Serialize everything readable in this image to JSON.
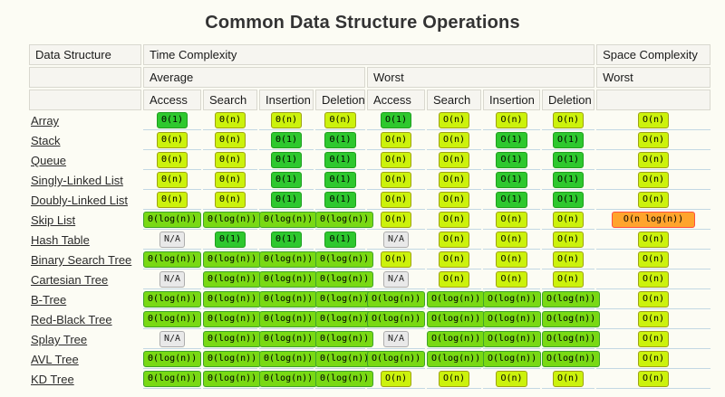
{
  "title": "Common Data Structure Operations",
  "colors": {
    "green-bg": "#2ec82e",
    "green-border": "#1f9e1f",
    "lightgreen-bg": "#79d914",
    "lightgreen-border": "#3fa32a",
    "yellow-bg": "#ccf20c",
    "yellow-border": "#9ea314",
    "orange-bg": "#ffa42d",
    "orange-border": "#ff4f40",
    "na-bg": "#e9e9e9",
    "na-border": "#adadad"
  },
  "table": {
    "header": {
      "data_structure": "Data Structure",
      "time_complexity": "Time Complexity",
      "space_complexity": "Space Complexity",
      "average": "Average",
      "worst": "Worst",
      "space_worst": "Worst",
      "ops": [
        "Access",
        "Search",
        "Insertion",
        "Deletion",
        "Access",
        "Search",
        "Insertion",
        "Deletion"
      ]
    },
    "rows": [
      {
        "name": "Array",
        "cells": [
          [
            "Θ(1)",
            "green"
          ],
          [
            "Θ(n)",
            "yellow"
          ],
          [
            "Θ(n)",
            "yellow"
          ],
          [
            "Θ(n)",
            "yellow"
          ],
          [
            "O(1)",
            "green"
          ],
          [
            "O(n)",
            "yellow"
          ],
          [
            "O(n)",
            "yellow"
          ],
          [
            "O(n)",
            "yellow"
          ],
          [
            "O(n)",
            "yellow"
          ]
        ]
      },
      {
        "name": "Stack",
        "cells": [
          [
            "Θ(n)",
            "yellow"
          ],
          [
            "Θ(n)",
            "yellow"
          ],
          [
            "Θ(1)",
            "green"
          ],
          [
            "Θ(1)",
            "green"
          ],
          [
            "O(n)",
            "yellow"
          ],
          [
            "O(n)",
            "yellow"
          ],
          [
            "O(1)",
            "green"
          ],
          [
            "O(1)",
            "green"
          ],
          [
            "O(n)",
            "yellow"
          ]
        ]
      },
      {
        "name": "Queue",
        "cells": [
          [
            "Θ(n)",
            "yellow"
          ],
          [
            "Θ(n)",
            "yellow"
          ],
          [
            "Θ(1)",
            "green"
          ],
          [
            "Θ(1)",
            "green"
          ],
          [
            "O(n)",
            "yellow"
          ],
          [
            "O(n)",
            "yellow"
          ],
          [
            "O(1)",
            "green"
          ],
          [
            "O(1)",
            "green"
          ],
          [
            "O(n)",
            "yellow"
          ]
        ]
      },
      {
        "name": "Singly-Linked List",
        "cells": [
          [
            "Θ(n)",
            "yellow"
          ],
          [
            "Θ(n)",
            "yellow"
          ],
          [
            "Θ(1)",
            "green"
          ],
          [
            "Θ(1)",
            "green"
          ],
          [
            "O(n)",
            "yellow"
          ],
          [
            "O(n)",
            "yellow"
          ],
          [
            "O(1)",
            "green"
          ],
          [
            "O(1)",
            "green"
          ],
          [
            "O(n)",
            "yellow"
          ]
        ]
      },
      {
        "name": "Doubly-Linked List",
        "cells": [
          [
            "Θ(n)",
            "yellow"
          ],
          [
            "Θ(n)",
            "yellow"
          ],
          [
            "Θ(1)",
            "green"
          ],
          [
            "Θ(1)",
            "green"
          ],
          [
            "O(n)",
            "yellow"
          ],
          [
            "O(n)",
            "yellow"
          ],
          [
            "O(1)",
            "green"
          ],
          [
            "O(1)",
            "green"
          ],
          [
            "O(n)",
            "yellow"
          ]
        ]
      },
      {
        "name": "Skip List",
        "cells": [
          [
            "Θ(log(n))",
            "lightgreen"
          ],
          [
            "Θ(log(n))",
            "lightgreen"
          ],
          [
            "Θ(log(n))",
            "lightgreen"
          ],
          [
            "Θ(log(n))",
            "lightgreen"
          ],
          [
            "O(n)",
            "yellow"
          ],
          [
            "O(n)",
            "yellow"
          ],
          [
            "O(n)",
            "yellow"
          ],
          [
            "O(n)",
            "yellow"
          ],
          [
            "O(n log(n))",
            "orange"
          ]
        ]
      },
      {
        "name": "Hash Table",
        "cells": [
          [
            "N/A",
            "na"
          ],
          [
            "Θ(1)",
            "green"
          ],
          [
            "Θ(1)",
            "green"
          ],
          [
            "Θ(1)",
            "green"
          ],
          [
            "N/A",
            "na"
          ],
          [
            "O(n)",
            "yellow"
          ],
          [
            "O(n)",
            "yellow"
          ],
          [
            "O(n)",
            "yellow"
          ],
          [
            "O(n)",
            "yellow"
          ]
        ]
      },
      {
        "name": "Binary Search Tree",
        "cells": [
          [
            "Θ(log(n))",
            "lightgreen"
          ],
          [
            "Θ(log(n))",
            "lightgreen"
          ],
          [
            "Θ(log(n))",
            "lightgreen"
          ],
          [
            "Θ(log(n))",
            "lightgreen"
          ],
          [
            "O(n)",
            "yellow"
          ],
          [
            "O(n)",
            "yellow"
          ],
          [
            "O(n)",
            "yellow"
          ],
          [
            "O(n)",
            "yellow"
          ],
          [
            "O(n)",
            "yellow"
          ]
        ]
      },
      {
        "name": "Cartesian Tree",
        "cells": [
          [
            "N/A",
            "na"
          ],
          [
            "Θ(log(n))",
            "lightgreen"
          ],
          [
            "Θ(log(n))",
            "lightgreen"
          ],
          [
            "Θ(log(n))",
            "lightgreen"
          ],
          [
            "N/A",
            "na"
          ],
          [
            "O(n)",
            "yellow"
          ],
          [
            "O(n)",
            "yellow"
          ],
          [
            "O(n)",
            "yellow"
          ],
          [
            "O(n)",
            "yellow"
          ]
        ]
      },
      {
        "name": "B-Tree",
        "cells": [
          [
            "Θ(log(n))",
            "lightgreen"
          ],
          [
            "Θ(log(n))",
            "lightgreen"
          ],
          [
            "Θ(log(n))",
            "lightgreen"
          ],
          [
            "Θ(log(n))",
            "lightgreen"
          ],
          [
            "O(log(n))",
            "lightgreen"
          ],
          [
            "O(log(n))",
            "lightgreen"
          ],
          [
            "O(log(n))",
            "lightgreen"
          ],
          [
            "O(log(n))",
            "lightgreen"
          ],
          [
            "O(n)",
            "yellow"
          ]
        ]
      },
      {
        "name": "Red-Black Tree",
        "cells": [
          [
            "Θ(log(n))",
            "lightgreen"
          ],
          [
            "Θ(log(n))",
            "lightgreen"
          ],
          [
            "Θ(log(n))",
            "lightgreen"
          ],
          [
            "Θ(log(n))",
            "lightgreen"
          ],
          [
            "O(log(n))",
            "lightgreen"
          ],
          [
            "O(log(n))",
            "lightgreen"
          ],
          [
            "O(log(n))",
            "lightgreen"
          ],
          [
            "O(log(n))",
            "lightgreen"
          ],
          [
            "O(n)",
            "yellow"
          ]
        ]
      },
      {
        "name": "Splay Tree",
        "cells": [
          [
            "N/A",
            "na"
          ],
          [
            "Θ(log(n))",
            "lightgreen"
          ],
          [
            "Θ(log(n))",
            "lightgreen"
          ],
          [
            "Θ(log(n))",
            "lightgreen"
          ],
          [
            "N/A",
            "na"
          ],
          [
            "O(log(n))",
            "lightgreen"
          ],
          [
            "O(log(n))",
            "lightgreen"
          ],
          [
            "O(log(n))",
            "lightgreen"
          ],
          [
            "O(n)",
            "yellow"
          ]
        ]
      },
      {
        "name": "AVL Tree",
        "cells": [
          [
            "Θ(log(n))",
            "lightgreen"
          ],
          [
            "Θ(log(n))",
            "lightgreen"
          ],
          [
            "Θ(log(n))",
            "lightgreen"
          ],
          [
            "Θ(log(n))",
            "lightgreen"
          ],
          [
            "O(log(n))",
            "lightgreen"
          ],
          [
            "O(log(n))",
            "lightgreen"
          ],
          [
            "O(log(n))",
            "lightgreen"
          ],
          [
            "O(log(n))",
            "lightgreen"
          ],
          [
            "O(n)",
            "yellow"
          ]
        ]
      },
      {
        "name": "KD Tree",
        "cells": [
          [
            "Θ(log(n))",
            "lightgreen"
          ],
          [
            "Θ(log(n))",
            "lightgreen"
          ],
          [
            "Θ(log(n))",
            "lightgreen"
          ],
          [
            "Θ(log(n))",
            "lightgreen"
          ],
          [
            "O(n)",
            "yellow"
          ],
          [
            "O(n)",
            "yellow"
          ],
          [
            "O(n)",
            "yellow"
          ],
          [
            "O(n)",
            "yellow"
          ],
          [
            "O(n)",
            "yellow"
          ]
        ]
      }
    ]
  }
}
